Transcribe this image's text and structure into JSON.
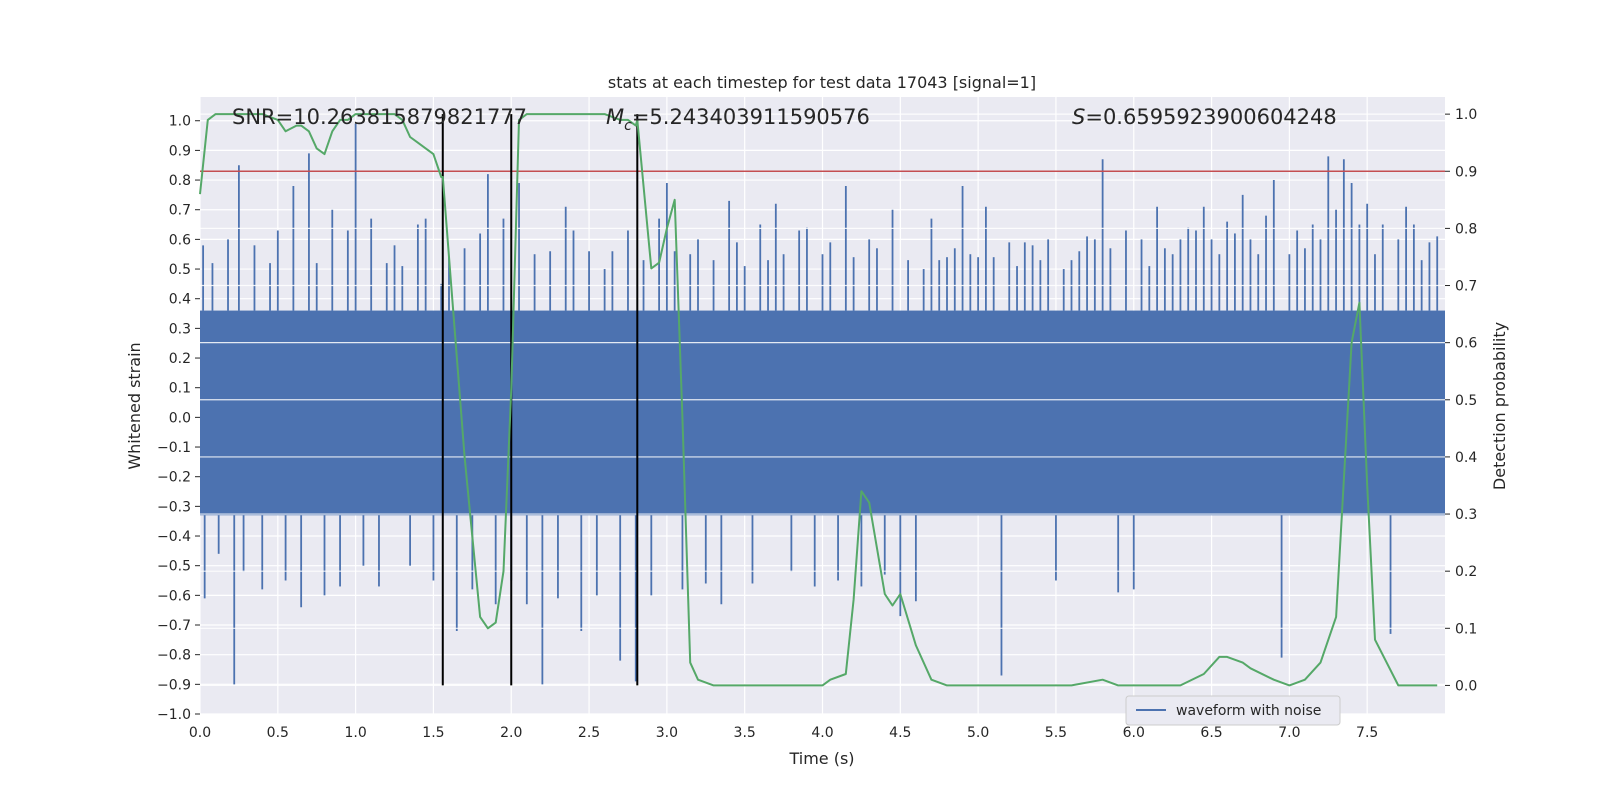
{
  "chart_data": {
    "type": "line",
    "title": "stats at each timestep for test data 17043 [signal=1]",
    "xlabel": "Time (s)",
    "ylabel_left": "Whitened strain",
    "ylabel_right": "Detection probability",
    "xlim": [
      0.0,
      8.0
    ],
    "ylim_left": [
      -1.0,
      1.08
    ],
    "ylim_right": [
      -0.05,
      1.03
    ],
    "x_ticks": [
      "0.0",
      "0.5",
      "1.0",
      "1.5",
      "2.0",
      "2.5",
      "3.0",
      "3.5",
      "4.0",
      "4.5",
      "5.0",
      "5.5",
      "6.0",
      "6.5",
      "7.0",
      "7.5"
    ],
    "y_ticks_left": [
      "1.0",
      "0.9",
      "0.8",
      "0.7",
      "0.6",
      "0.5",
      "0.4",
      "0.3",
      "0.2",
      "0.1",
      "0.0",
      "−0.1",
      "−0.2",
      "−0.3",
      "−0.4",
      "−0.5",
      "−0.6",
      "−0.7",
      "−0.8",
      "−0.9",
      "−1.0"
    ],
    "y_ticks_right": [
      "1.0",
      "0.9",
      "0.8",
      "0.7",
      "0.6",
      "0.5",
      "0.4",
      "0.3",
      "0.2",
      "0.1",
      "0.0"
    ],
    "grid": true,
    "legend_position": "lower-right",
    "annotations": {
      "snr": "SNR=10.263815879821777",
      "mc_symbol": "M",
      "mc_sub": "c",
      "mc_value": "=5.243403911590576",
      "s_symbol": "S",
      "s_value": "=0.6595923900604248"
    },
    "colors": {
      "waveform": "#4c72b0",
      "probability": "#55a868",
      "threshold": "#c44e52",
      "markers": "#000000",
      "plot_background": "#eaeaf2",
      "grid": "#ffffff"
    },
    "threshold": 0.9,
    "vertical_markers": [
      1.56,
      2.0,
      2.81
    ],
    "series": [
      {
        "name": "waveform with noise",
        "axis": "left",
        "band_lower": -0.33,
        "band_upper": 0.36,
        "spikes": [
          [
            0.02,
            0.58
          ],
          [
            0.03,
            -0.61
          ],
          [
            0.08,
            0.52
          ],
          [
            0.12,
            -0.46
          ],
          [
            0.18,
            0.6
          ],
          [
            0.22,
            -0.9
          ],
          [
            0.25,
            0.85
          ],
          [
            0.28,
            -0.52
          ],
          [
            0.35,
            0.58
          ],
          [
            0.4,
            -0.58
          ],
          [
            0.45,
            0.52
          ],
          [
            0.5,
            0.63
          ],
          [
            0.55,
            -0.55
          ],
          [
            0.6,
            0.78
          ],
          [
            0.65,
            -0.64
          ],
          [
            0.7,
            0.89
          ],
          [
            0.75,
            0.52
          ],
          [
            0.8,
            -0.6
          ],
          [
            0.85,
            0.7
          ],
          [
            0.9,
            -0.57
          ],
          [
            0.95,
            0.63
          ],
          [
            1.0,
            0.99
          ],
          [
            1.05,
            -0.5
          ],
          [
            1.1,
            0.67
          ],
          [
            1.15,
            -0.57
          ],
          [
            1.2,
            0.52
          ],
          [
            1.25,
            0.58
          ],
          [
            1.3,
            0.51
          ],
          [
            1.35,
            -0.5
          ],
          [
            1.4,
            0.65
          ],
          [
            1.45,
            0.67
          ],
          [
            1.5,
            -0.55
          ],
          [
            1.55,
            0.45
          ],
          [
            1.6,
            0.54
          ],
          [
            1.65,
            -0.72
          ],
          [
            1.7,
            0.57
          ],
          [
            1.75,
            -0.58
          ],
          [
            1.8,
            0.62
          ],
          [
            1.85,
            0.82
          ],
          [
            1.9,
            -0.63
          ],
          [
            1.95,
            0.67
          ],
          [
            2.0,
            -0.55
          ],
          [
            2.05,
            0.79
          ],
          [
            2.1,
            -0.63
          ],
          [
            2.15,
            0.55
          ],
          [
            2.2,
            -0.9
          ],
          [
            2.25,
            0.56
          ],
          [
            2.3,
            -0.61
          ],
          [
            2.35,
            0.71
          ],
          [
            2.4,
            0.63
          ],
          [
            2.45,
            -0.72
          ],
          [
            2.5,
            0.56
          ],
          [
            2.55,
            -0.6
          ],
          [
            2.6,
            0.5
          ],
          [
            2.65,
            0.56
          ],
          [
            2.7,
            -0.82
          ],
          [
            2.75,
            0.63
          ],
          [
            2.8,
            -0.89
          ],
          [
            2.85,
            0.53
          ],
          [
            2.9,
            -0.6
          ],
          [
            2.95,
            0.67
          ],
          [
            3.0,
            0.79
          ],
          [
            3.05,
            0.56
          ],
          [
            3.1,
            -0.58
          ],
          [
            3.15,
            0.55
          ],
          [
            3.2,
            0.6
          ],
          [
            3.25,
            -0.56
          ],
          [
            3.3,
            0.53
          ],
          [
            3.35,
            -0.63
          ],
          [
            3.4,
            0.73
          ],
          [
            3.45,
            0.59
          ],
          [
            3.5,
            0.51
          ],
          [
            3.55,
            -0.56
          ],
          [
            3.6,
            0.65
          ],
          [
            3.65,
            0.53
          ],
          [
            3.7,
            0.72
          ],
          [
            3.75,
            0.55
          ],
          [
            3.8,
            -0.52
          ],
          [
            3.85,
            0.63
          ],
          [
            3.9,
            0.64
          ],
          [
            3.95,
            -0.57
          ],
          [
            4.0,
            0.55
          ],
          [
            4.05,
            0.59
          ],
          [
            4.1,
            -0.55
          ],
          [
            4.15,
            0.78
          ],
          [
            4.2,
            0.54
          ],
          [
            4.25,
            -0.57
          ],
          [
            4.3,
            0.6
          ],
          [
            4.35,
            0.57
          ],
          [
            4.4,
            -0.53
          ],
          [
            4.45,
            0.7
          ],
          [
            4.5,
            -0.67
          ],
          [
            4.55,
            0.53
          ],
          [
            4.6,
            -0.62
          ],
          [
            4.65,
            0.5
          ],
          [
            4.7,
            0.67
          ],
          [
            4.75,
            0.53
          ],
          [
            4.8,
            0.54
          ],
          [
            4.85,
            0.57
          ],
          [
            4.9,
            0.78
          ],
          [
            4.95,
            0.55
          ],
          [
            5.0,
            0.54
          ],
          [
            5.05,
            0.71
          ],
          [
            5.1,
            0.54
          ],
          [
            5.15,
            -0.87
          ],
          [
            5.2,
            0.59
          ],
          [
            5.25,
            0.51
          ],
          [
            5.3,
            0.59
          ],
          [
            5.35,
            0.58
          ],
          [
            5.4,
            0.53
          ],
          [
            5.45,
            0.6
          ],
          [
            5.5,
            -0.55
          ],
          [
            5.55,
            0.5
          ],
          [
            5.6,
            0.53
          ],
          [
            5.65,
            0.56
          ],
          [
            5.7,
            0.61
          ],
          [
            5.75,
            0.6
          ],
          [
            5.8,
            0.87
          ],
          [
            5.85,
            0.57
          ],
          [
            5.9,
            -0.59
          ],
          [
            5.95,
            0.63
          ],
          [
            6.0,
            -0.58
          ],
          [
            6.05,
            0.6
          ],
          [
            6.1,
            0.51
          ],
          [
            6.15,
            0.71
          ],
          [
            6.2,
            0.57
          ],
          [
            6.25,
            0.55
          ],
          [
            6.3,
            0.6
          ],
          [
            6.35,
            0.64
          ],
          [
            6.4,
            0.63
          ],
          [
            6.45,
            0.71
          ],
          [
            6.5,
            0.6
          ],
          [
            6.55,
            0.55
          ],
          [
            6.6,
            0.66
          ],
          [
            6.65,
            0.62
          ],
          [
            6.7,
            0.75
          ],
          [
            6.75,
            0.6
          ],
          [
            6.8,
            0.55
          ],
          [
            6.85,
            0.68
          ],
          [
            6.9,
            0.8
          ],
          [
            6.95,
            -0.81
          ],
          [
            7.0,
            0.55
          ],
          [
            7.05,
            0.63
          ],
          [
            7.1,
            0.57
          ],
          [
            7.15,
            0.65
          ],
          [
            7.2,
            0.6
          ],
          [
            7.25,
            0.88
          ],
          [
            7.3,
            0.7
          ],
          [
            7.35,
            0.87
          ],
          [
            7.4,
            0.79
          ],
          [
            7.45,
            0.65
          ],
          [
            7.5,
            0.72
          ],
          [
            7.55,
            0.55
          ],
          [
            7.6,
            0.65
          ],
          [
            7.65,
            -0.73
          ],
          [
            7.7,
            0.6
          ],
          [
            7.75,
            0.71
          ],
          [
            7.8,
            0.65
          ],
          [
            7.85,
            0.53
          ],
          [
            7.9,
            0.59
          ],
          [
            7.95,
            0.61
          ]
        ]
      },
      {
        "name": "",
        "axis": "right",
        "x": [
          0.0,
          0.05,
          0.1,
          0.2,
          0.3,
          0.4,
          0.5,
          0.55,
          0.62,
          0.65,
          0.7,
          0.75,
          0.8,
          0.85,
          0.9,
          0.95,
          1.0,
          1.05,
          1.15,
          1.25,
          1.3,
          1.35,
          1.4,
          1.45,
          1.5,
          1.55,
          1.56,
          1.6,
          1.7,
          1.8,
          1.85,
          1.9,
          1.95,
          2.0,
          2.05,
          2.1,
          2.2,
          2.3,
          2.5,
          2.6,
          2.7,
          2.75,
          2.8,
          2.81,
          2.9,
          2.95,
          3.0,
          3.05,
          3.1,
          3.15,
          3.2,
          3.3,
          3.5,
          3.8,
          4.0,
          4.05,
          4.15,
          4.2,
          4.25,
          4.3,
          4.35,
          4.4,
          4.45,
          4.5,
          4.6,
          4.7,
          4.8,
          5.0,
          5.6,
          5.8,
          5.9,
          6.3,
          6.45,
          6.55,
          6.6,
          6.7,
          6.75,
          6.9,
          7.0,
          7.1,
          7.2,
          7.3,
          7.4,
          7.45,
          7.5,
          7.55,
          7.7,
          7.9,
          7.95
        ],
        "y": [
          0.86,
          0.99,
          1.0,
          1.0,
          1.0,
          1.0,
          0.99,
          0.97,
          0.98,
          0.98,
          0.97,
          0.94,
          0.93,
          0.97,
          0.99,
          0.99,
          1.0,
          1.0,
          1.0,
          1.0,
          0.99,
          0.96,
          0.95,
          0.94,
          0.93,
          0.89,
          0.89,
          0.75,
          0.4,
          0.12,
          0.1,
          0.11,
          0.2,
          0.52,
          0.99,
          1.0,
          1.0,
          1.0,
          1.0,
          1.0,
          0.99,
          0.99,
          0.98,
          0.99,
          0.73,
          0.74,
          0.8,
          0.85,
          0.47,
          0.04,
          0.01,
          0.0,
          0.0,
          0.0,
          0.0,
          0.01,
          0.02,
          0.15,
          0.34,
          0.32,
          0.24,
          0.16,
          0.14,
          0.16,
          0.07,
          0.01,
          0.0,
          0.0,
          0.0,
          0.01,
          0.0,
          0.0,
          0.02,
          0.05,
          0.05,
          0.04,
          0.03,
          0.01,
          0.0,
          0.01,
          0.04,
          0.12,
          0.6,
          0.67,
          0.35,
          0.08,
          0.0,
          0.0,
          0.0
        ]
      }
    ]
  }
}
